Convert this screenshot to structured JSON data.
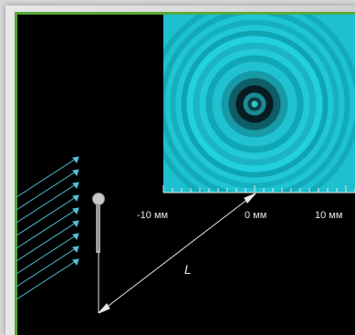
{
  "scale": {
    "labels": [
      "-10 мм",
      "0 мм",
      "10 мм"
    ]
  },
  "distance_label": "L",
  "colors": {
    "background": "#000000",
    "frame_accent": "#5aa83a",
    "light_rays": "#4fc3d9",
    "pattern_cyan": "#22d0df",
    "lines": "#e6e6e6"
  },
  "icons": {
    "source_rays": "arrow-rays",
    "pinhole_pin": "pin-icon"
  }
}
